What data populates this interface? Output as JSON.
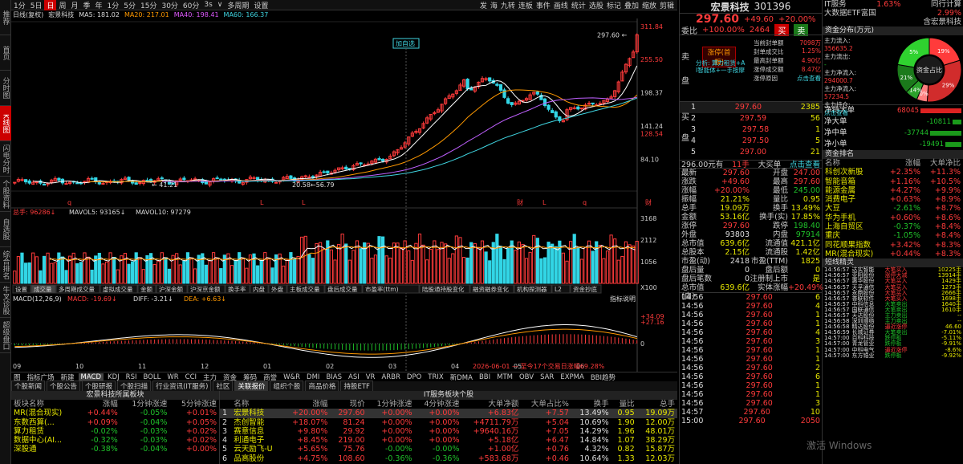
{
  "leftnav": [
    "推荐",
    "首页",
    "分时图",
    "K线图",
    "闪电分时",
    "个股资料",
    "自选股",
    "综合排名",
    "牛叉诊股",
    "超级盘口"
  ],
  "toolbar": {
    "items": [
      "1分",
      "5日",
      "日",
      "周",
      "月",
      "季",
      "年",
      "1分",
      "5分",
      "15分",
      "30分",
      "60分",
      "3s",
      "∨",
      "多周期",
      "设置"
    ],
    "active": "日",
    "right": [
      "发",
      "海",
      "九转",
      "连板",
      "事件",
      "画线",
      "统计",
      "选股",
      "标记",
      "叠加",
      "缩放",
      "剪辑"
    ]
  },
  "chart": {
    "legend1": {
      "title": "日线(复权)",
      "name": "宏景科技",
      "ma5": "MA5: 181.02",
      "ma20": "MA20: 217.01",
      "ma40": "MA40: 198.41",
      "ma60": "MA60: 166.37"
    },
    "price_ticks": [
      "311.84",
      "255.50",
      "198.37",
      "141.24",
      "128.54",
      "84.10"
    ],
    "price_label": "297.60 ←",
    "low_label": "← 41.21",
    "mid_label": "20.58←56.79",
    "zixuan": "加自选",
    "markers": [
      "q",
      "L",
      "L",
      "财",
      "L",
      "q",
      "财",
      "材"
    ],
    "legend2": {
      "a": "总手: 96286↓",
      "b": "MAVOL5: 93165↓",
      "c": "MAVOL10: 97279"
    },
    "vol_ticks": [
      "3168",
      "2112",
      "1056",
      "X100"
    ],
    "vol_tabs": [
      "设置",
      "成交量",
      "多周期成交量",
      "虚拟成交量",
      "金额",
      "沪深金额",
      "沪深京金额",
      "换手率",
      "内盘",
      "外盘",
      "主板成交量",
      "盘后成交量",
      "市盈率(ttm)",
      "陆股通持股变化",
      "融资融券变化",
      "机构探测器",
      "L2",
      "资金抄底"
    ],
    "vol_active": "成交量",
    "legend3": {
      "a": "MACD(12,26,9)",
      "b": "MACD: -19.69↓",
      "c": "DIFF: -3.21↓",
      "d": "DEA: +6.63↓"
    },
    "macd_ticks": [
      "+34.09",
      "+27.16",
      "0"
    ],
    "macd_help": "指标说明",
    "x_labels": [
      "09",
      "10",
      "11",
      "12",
      "01",
      "02",
      "03",
      "04",
      "05",
      "06"
    ],
    "x_note": "2026-06-01 — 至今17个交易日涨幅69.28%"
  },
  "indicator_tabs": {
    "items": [
      "图",
      "指标广场",
      "新建",
      "MACD",
      "KDJ",
      "RSI",
      "BOLL",
      "WR",
      "CCI",
      "主力",
      "资金",
      "筹码",
      "商誉",
      "W&R",
      "DMI",
      "BIAS",
      "ASI",
      "VR",
      "ARBR",
      "DPO",
      "TRIX",
      "新DMA",
      "BBI",
      "MTM",
      "OBV",
      "SAR",
      "EXPMA",
      "BBI趋势"
    ],
    "active": "MACD"
  },
  "info_tabs": {
    "items": [
      "个股新闻",
      "个股公告",
      "个股研报",
      "个股扫描",
      "行业资讯(IT服务)",
      "社区",
      "关联报价",
      "组织个股",
      "商品价格",
      "持股ETF"
    ],
    "active": "关联报价"
  },
  "sector_table": {
    "title": "宏景科技所属板块",
    "headers": [
      "板块名称",
      "涨幅",
      "1分钟涨速",
      "5分钟涨速"
    ],
    "rows": [
      [
        "MR(混合现实)",
        "+0.44%",
        "-0.05%",
        "+0.01%"
      ],
      [
        "东数西算(...",
        "+0.09%",
        "-0.04%",
        "+0.05%"
      ],
      [
        "算力租赁",
        "-0.02%",
        "-0.03%",
        "+0.02%"
      ],
      [
        "数据中心(AI...",
        "-0.32%",
        "-0.03%",
        "+0.02%"
      ],
      [
        "深股通",
        "-0.38%",
        "-0.04%",
        "+0.00%"
      ]
    ]
  },
  "leader_table": {
    "title": "IT服务板块个股",
    "headers": [
      "",
      "名称",
      "涨幅",
      "现价",
      "1分钟涨速",
      "4分钟涨速",
      "大单净额",
      "大单占比%",
      "换手",
      "量比",
      "总手"
    ],
    "rows": [
      [
        "1",
        "宏景科技",
        "+20.00%",
        "297.60",
        "+0.00%",
        "+0.00%",
        "+6.83亿",
        "+7.57",
        "13.49%",
        "0.95",
        "19.09万"
      ],
      [
        "2",
        "杰创智能",
        "+18.07%",
        "81.24",
        "+0.00%",
        "+0.00%",
        "+4711.79万",
        "+5.04",
        "10.69%",
        "1.90",
        "12.00万"
      ],
      [
        "3",
        "赛意信息",
        "+9.80%",
        "29.92",
        "+0.00%",
        "+0.00%",
        "+9640.16万",
        "+7.05",
        "14.29%",
        "1.96",
        "48.01万"
      ],
      [
        "4",
        "利通电子",
        "+8.45%",
        "219.00",
        "+0.00%",
        "+0.00%",
        "+5.18亿",
        "+6.47",
        "14.84%",
        "1.07",
        "38.29万"
      ],
      [
        "5",
        "云天励飞-U",
        "+5.65%",
        "75.76",
        "-0.00%",
        "-0.00%",
        "+1.00亿",
        "+0.76",
        "4.32%",
        "0.82",
        "15.87万"
      ],
      [
        "6",
        "品高股份",
        "+4.75%",
        "108.60",
        "-0.36%",
        "-0.36%",
        "+583.68万",
        "+0.46",
        "10.64%",
        "1.33",
        "12.03万"
      ]
    ]
  },
  "quote": {
    "name": "宏景科技",
    "code": "301396",
    "price": "297.60",
    "chg": "+49.60",
    "pct": "+20.00%",
    "weibi_label": "委比",
    "weibi": "+100.00%",
    "weicha": "2464",
    "buy_btn": "买",
    "sell_btn": "卖",
    "tag": "涨停(首板)",
    "analysis": "分析: 算力租赁+A\nI智能体+一手按摩",
    "side_labels": [
      "卖",
      "盘",
      "买",
      "盘"
    ],
    "ban_info": [
      [
        "当前封单额",
        "7098万"
      ],
      [
        "封单成交比",
        "1.25%"
      ],
      [
        "最高封单额",
        "4.90亿"
      ],
      [
        "涨停成交额",
        "8.47亿"
      ],
      [
        "涨停原因",
        "点击查看"
      ]
    ],
    "asks": [
      [
        "5",
        "",
        ""
      ],
      [
        "4",
        "",
        ""
      ],
      [
        "3",
        "",
        ""
      ],
      [
        "2",
        "",
        ""
      ],
      [
        "1",
        "",
        ""
      ]
    ],
    "bids": [
      [
        "1",
        "297.60",
        "2385"
      ],
      [
        "2",
        "297.59",
        "56"
      ],
      [
        "3",
        "297.58",
        "1"
      ],
      [
        "4",
        "297.50",
        "5"
      ],
      [
        "5",
        "297.00",
        "21"
      ]
    ],
    "fund_line": {
      "a": "296.00元有",
      "b": "11手",
      "c": "大买单",
      "d": "点击查看"
    },
    "stats": [
      [
        "最新",
        "297.60",
        "开盘",
        "247.00"
      ],
      [
        "涨跌",
        "+49.60",
        "最高",
        "297.60"
      ],
      [
        "涨幅",
        "+20.00%",
        "最低",
        "245.00"
      ],
      [
        "振幅",
        "21.21%",
        "量比",
        "0.95"
      ],
      [
        "总手",
        "19.09万",
        "换手",
        "13.49%"
      ],
      [
        "金额",
        "53.16亿",
        "换手(实)",
        "17.85%"
      ],
      [
        "涨停",
        "297.60",
        "跌停",
        "198.40"
      ],
      [
        "外盘",
        "93803",
        "内盘",
        "97914"
      ],
      [
        "总市值",
        "639.6亿",
        "流通值",
        "421.1亿"
      ],
      [
        "总股本",
        "2.15亿",
        "流通股",
        "1.42亿"
      ],
      [
        "市盈(动)",
        "2418",
        "市盈(TTM)",
        "1825"
      ],
      [
        "盘后量",
        "0",
        "盘后额",
        "0"
      ],
      [
        "盘后笔数",
        "0",
        "注册制上市",
        "是"
      ],
      [
        "总市值(自)",
        "639.6亿",
        "实体涨幅",
        "+20.49%"
      ]
    ],
    "ticks": [
      [
        "14:56",
        "297.60",
        "6"
      ],
      [
        "14:56",
        "297.60",
        "4"
      ],
      [
        "14:56",
        "297.60",
        "1"
      ],
      [
        "14:56",
        "297.60",
        "1"
      ],
      [
        "14:56",
        "297.60",
        "4"
      ],
      [
        "14:56",
        "297.60",
        "3"
      ],
      [
        "14:56",
        "297.60",
        "1"
      ],
      [
        "14:56",
        "297.60",
        "1"
      ],
      [
        "14:56",
        "297.60",
        "2"
      ],
      [
        "14:56",
        "297.60",
        "6"
      ],
      [
        "14:56",
        "297.60",
        "1"
      ],
      [
        "14:56",
        "297.60",
        "1"
      ],
      [
        "14:56",
        "297.60",
        "3"
      ],
      [
        "14:57",
        "297.60",
        "10"
      ],
      [
        "15:00",
        "297.60",
        "2050"
      ]
    ]
  },
  "right": {
    "sector": "IT服务",
    "sector_pct": "1.63%",
    "peer_label": "同行计算",
    "etf": "大数据ETF富国",
    "etf_pct": "2.99%",
    "hold": "含宏景科技",
    "flow_hdr": "资金分布(万元)",
    "flows": [
      [
        "主力流入",
        "356635.2"
      ],
      [
        "主力流出",
        "-",
        "-"
      ],
      [
        "主力净流入",
        "294000.7"
      ],
      [
        "主力净流入",
        "57234.5"
      ],
      [
        "主力持仓",
        "点击查看"
      ]
    ],
    "pie_label": "资金占比",
    "pie": [
      {
        "v": 19,
        "c": "#ff3b3b"
      },
      {
        "v": 29,
        "c": "#d12c2c"
      },
      {
        "v": 5,
        "c": "#ff8080"
      },
      {
        "v": 0,
        "c": "#666"
      },
      {
        "v": 6,
        "c": "#2ba02b"
      },
      {
        "v": 14,
        "c": "#1b7a1b"
      },
      {
        "v": 21,
        "c": "#2fd22f"
      },
      {
        "v": 0,
        "c": "#444"
      }
    ],
    "pie_texts": [
      "19%",
      "29%",
      "0%",
      "6%",
      "14%",
      "21%",
      "5%",
      "0%"
    ],
    "bigorders": [
      [
        "净特大单",
        "68045",
        1
      ],
      [
        "净大单",
        "-10811",
        -1
      ],
      [
        "净中单",
        "-37744",
        -1
      ],
      [
        "净小单",
        "-19491",
        -1
      ]
    ],
    "rank_hdr": "资金排名",
    "rank_cols": [
      "名称",
      "涨幅",
      "大单净比"
    ],
    "ranks": [
      [
        "科创次新股",
        "+2.35%",
        "+11.3%"
      ],
      [
        "智能音箱",
        "+1.16%",
        "+10.5%"
      ],
      [
        "能源金属",
        "+4.27%",
        "+9.9%"
      ],
      [
        "消费电子",
        "+0.63%",
        "+8.9%"
      ],
      [
        "大豆",
        "-2.61%",
        "+8.7%"
      ],
      [
        "华为手机",
        "+0.60%",
        "+8.6%"
      ],
      [
        "上海自贸区",
        "-0.37%",
        "+8.4%"
      ],
      [
        "重庆",
        "-1.05%",
        "+8.4%"
      ],
      [
        "同花顺果指数",
        "+3.42%",
        "+8.3%"
      ],
      [
        "MR(混合现实)",
        "+0.44%",
        "+8.3%"
      ]
    ],
    "alert_hdr": "短线精灵",
    "alerts": [
      [
        "14:56:57",
        "达实智能",
        "大笔买入",
        "10225手"
      ],
      [
        "14:56:57",
        "亚阳股份",
        "涨停大减",
        "13914手"
      ],
      [
        "14:56:57",
        "惠华股份",
        "大笔买入",
        "1429手"
      ],
      [
        "14:56:57",
        "天孚通信",
        "大笔买入",
        "1273手"
      ],
      [
        "14:56:57",
        "永鼎股份",
        "大笔买入",
        "2666手"
      ],
      [
        "14:56:57",
        "普联软件",
        "大笔买入",
        "1698手"
      ],
      [
        "14:56:57",
        "中科信息",
        "大笔卖出",
        "1640手"
      ],
      [
        "14:56:57",
        "国联通信",
        "大笔卖出",
        "1610手"
      ],
      [
        "14:56:57",
        "天达股份",
        "主力卖出",
        "--"
      ],
      [
        "14:56:58",
        "深圳顺络",
        "主力卖出",
        "--"
      ],
      [
        "14:56:58",
        "精达股份",
        "逼近涨停",
        "46.60"
      ],
      [
        "14:56:59",
        "长城证券",
        "大笔卖出",
        "-7.01%"
      ],
      [
        "14:57:00",
        "百科科技",
        "跌停板",
        "-5.11%"
      ],
      [
        "14:57:00",
        "青龙管业",
        "跌停板",
        "-9.91%"
      ],
      [
        "14:57:00",
        "中科电气",
        "逼近涨停",
        "-8.6%"
      ],
      [
        "14:57:00",
        "东方锆业",
        "跌停板",
        "-9.92%"
      ]
    ],
    "watermark": "激活 Windows"
  }
}
